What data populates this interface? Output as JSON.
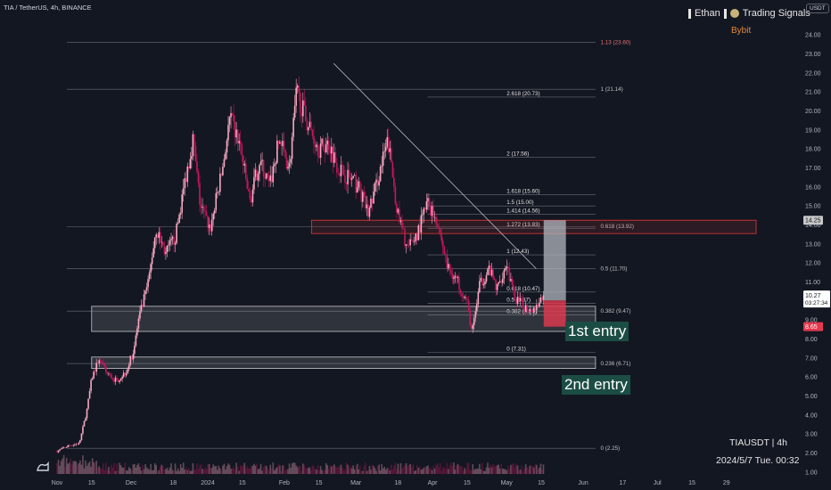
{
  "header": {
    "symbol_line": "TIA / TetherUS, 4h, BINANCE"
  },
  "watermark": {
    "name": "Ethan",
    "channel": "Trading Signals",
    "exchange": "Bybit"
  },
  "footer": {
    "ticker": "TIAUSDT | 4h",
    "datetime": "2024/5/7 Tue. 00:32"
  },
  "price_axis": {
    "currency": "USDT"
  },
  "annotations": {
    "entry1": "1st entry",
    "entry2": "2nd entry"
  },
  "colors": {
    "background": "#131722",
    "bull": "#f7a9c0",
    "bear": "#c2185b",
    "axis_text": "#b2b5be",
    "zone_border": "#c8c8c8",
    "red_zone_border": "#e53935",
    "fib_line": "#5d606b",
    "label_bg": "#1b4d44",
    "loss_box": "#e53950",
    "profit_box": "#b2b5be"
  },
  "chart_data": {
    "type": "candlestick",
    "title": "TIA / TetherUS, 4h, BINANCE",
    "ylim": [
      0.9,
      24.9
    ],
    "y_ticks": [
      1.0,
      2.0,
      3.0,
      4.0,
      5.0,
      6.0,
      7.0,
      8.0,
      9.0,
      10.0,
      11.0,
      12.0,
      13.0,
      14.0,
      15.0,
      16.0,
      17.0,
      18.0,
      19.0,
      20.0,
      21.0,
      22.0,
      23.0,
      24.0
    ],
    "x_ticks": [
      {
        "label": "Nov",
        "pos": 0
      },
      {
        "label": "15",
        "pos": 14
      },
      {
        "label": "Dec",
        "pos": 30
      },
      {
        "label": "18",
        "pos": 47
      },
      {
        "label": "2024",
        "pos": 61
      },
      {
        "label": "15",
        "pos": 75
      },
      {
        "label": "Feb",
        "pos": 92
      },
      {
        "label": "15",
        "pos": 106
      },
      {
        "label": "Mar",
        "pos": 121
      },
      {
        "label": "18",
        "pos": 138
      },
      {
        "label": "Apr",
        "pos": 152
      },
      {
        "label": "15",
        "pos": 166
      },
      {
        "label": "May",
        "pos": 182
      },
      {
        "label": "15",
        "pos": 196
      },
      {
        "label": "Jun",
        "pos": 213
      },
      {
        "label": "17",
        "pos": 229
      },
      {
        "label": "Jul",
        "pos": 243
      },
      {
        "label": "15",
        "pos": 257
      },
      {
        "label": "29",
        "pos": 271
      }
    ],
    "x_range": [
      0,
      283
    ],
    "price_path": [
      [
        0,
        2.1
      ],
      [
        5,
        2.4
      ],
      [
        9,
        2.5
      ],
      [
        12,
        4.2
      ],
      [
        14,
        5.9
      ],
      [
        17,
        7.0
      ],
      [
        20,
        6.2
      ],
      [
        24,
        5.8
      ],
      [
        28,
        6.3
      ],
      [
        31,
        7.4
      ],
      [
        33,
        9.0
      ],
      [
        37,
        11.0
      ],
      [
        40,
        13.8
      ],
      [
        44,
        12.5
      ],
      [
        48,
        13.4
      ],
      [
        52,
        16.5
      ],
      [
        55,
        18.5
      ],
      [
        58,
        15.0
      ],
      [
        62,
        13.8
      ],
      [
        67,
        17.0
      ],
      [
        70,
        19.6
      ],
      [
        74,
        18.2
      ],
      [
        78,
        15.2
      ],
      [
        82,
        17.4
      ],
      [
        86,
        16.0
      ],
      [
        90,
        18.5
      ],
      [
        94,
        17.0
      ],
      [
        97,
        21.0
      ],
      [
        101,
        19.5
      ],
      [
        106,
        18.0
      ],
      [
        110,
        18.3
      ],
      [
        114,
        17.0
      ],
      [
        118,
        16.5
      ],
      [
        122,
        16.0
      ],
      [
        126,
        14.6
      ],
      [
        130,
        16.5
      ],
      [
        134,
        18.4
      ],
      [
        138,
        14.5
      ],
      [
        142,
        12.7
      ],
      [
        146,
        13.6
      ],
      [
        150,
        15.2
      ],
      [
        154,
        14.2
      ],
      [
        158,
        11.8
      ],
      [
        162,
        11.1
      ],
      [
        166,
        9.9
      ],
      [
        168,
        8.3
      ],
      [
        171,
        10.8
      ],
      [
        175,
        11.7
      ],
      [
        178,
        10.6
      ],
      [
        182,
        12.0
      ],
      [
        185,
        10.2
      ],
      [
        189,
        9.7
      ],
      [
        193,
        9.6
      ],
      [
        197,
        10.27
      ]
    ],
    "current_price": 10.27,
    "countdown": "03:27:34",
    "price_labels": [
      {
        "value": 14.25,
        "text": "14.25"
      },
      {
        "value": 10.03,
        "text": "10.03"
      },
      {
        "value": 8.65,
        "text": "8.65"
      }
    ],
    "fib_left": [
      {
        "label": "2.618 (20.73)",
        "value": 20.73
      },
      {
        "label": "2 (17.56)",
        "value": 17.56
      },
      {
        "label": "1.618 (15.60)",
        "value": 15.6
      },
      {
        "label": "1.5 (15.00)",
        "value": 15.0
      },
      {
        "label": "1.414 (14.56)",
        "value": 14.56
      },
      {
        "label": "1.272 (13.83)",
        "value": 13.83
      },
      {
        "label": "1 (12.43)",
        "value": 12.43
      },
      {
        "label": "0.618 (10.47)",
        "value": 10.47
      },
      {
        "label": "0.5 (9.87)",
        "value": 9.87
      },
      {
        "label": "0.382 (9.26)",
        "value": 9.26
      },
      {
        "label": "0 (7.31)",
        "value": 7.31
      }
    ],
    "fib_right": [
      {
        "label": "1.13 (23.60)",
        "value": 23.6
      },
      {
        "label": "1 (21.14)",
        "value": 21.14
      },
      {
        "label": "0.618 (13.92)",
        "value": 13.92
      },
      {
        "label": "0.5 (11.70)",
        "value": 11.7
      },
      {
        "label": "0.382 (9.47)",
        "value": 9.47
      },
      {
        "label": "0.236 (6.71)",
        "value": 6.71
      },
      {
        "label": "0 (2.25)",
        "value": 2.25
      }
    ],
    "zones": [
      {
        "name": "resistance",
        "low": 13.55,
        "high": 14.25,
        "from": 103,
        "to": 283
      },
      {
        "name": "support-1",
        "low": 8.4,
        "high": 9.72,
        "from": 14,
        "to": 218
      },
      {
        "name": "support-2",
        "low": 6.45,
        "high": 7.05,
        "from": 14,
        "to": 218
      }
    ],
    "position": {
      "entry": 10.03,
      "target": 14.25,
      "stop": 8.65,
      "from": 197,
      "to": 206
    },
    "trendline": [
      [
        112,
        22.5
      ],
      [
        194,
        11.7
      ]
    ]
  }
}
